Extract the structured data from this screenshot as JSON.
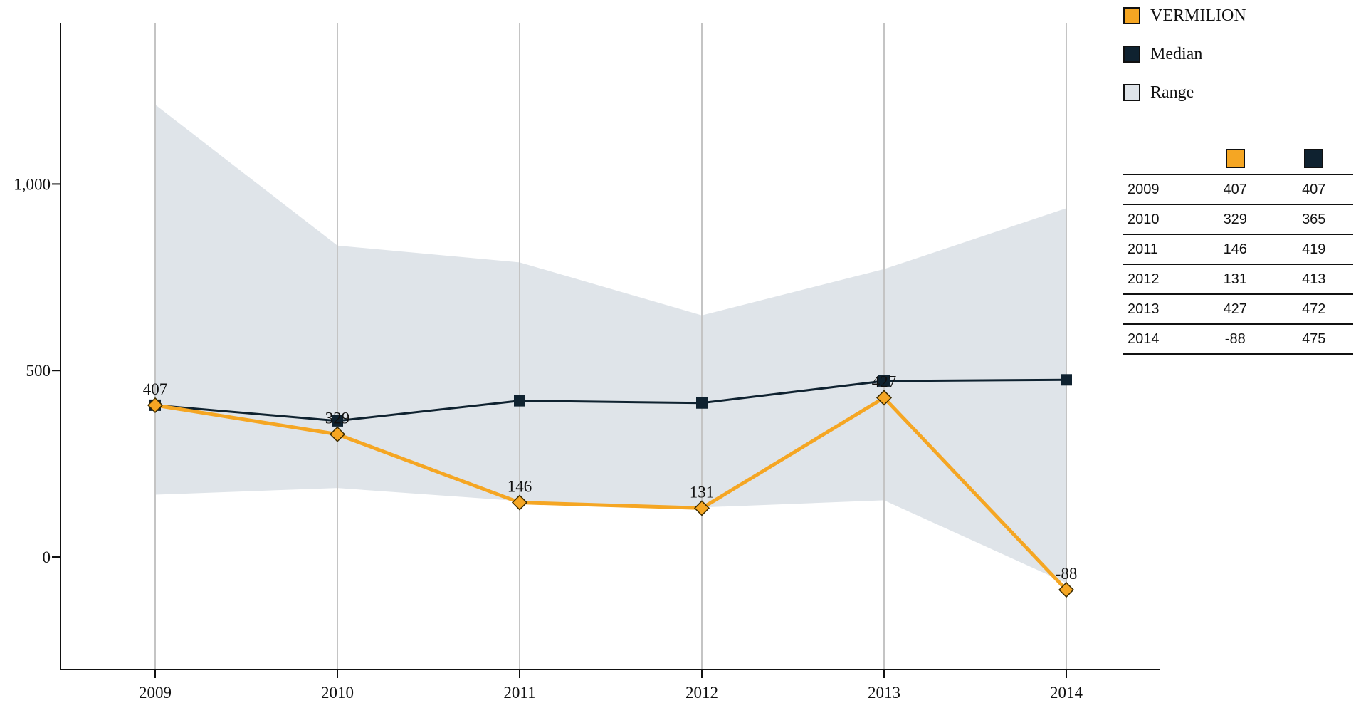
{
  "chart_data": {
    "type": "line",
    "categories": [
      "2009",
      "2010",
      "2011",
      "2012",
      "2013",
      "2014"
    ],
    "series": [
      {
        "name": "VERMILION",
        "values": [
          407,
          329,
          146,
          131,
          427,
          -88
        ],
        "color": "#f5a623",
        "marker": "diamond",
        "data_labels": [
          "407",
          "329",
          "146",
          "131",
          "427",
          "-88"
        ]
      },
      {
        "name": "Median",
        "values": [
          407,
          365,
          419,
          413,
          472,
          475
        ],
        "color": "#0f2230",
        "marker": "square"
      }
    ],
    "range": {
      "name": "Range",
      "upper": [
        1213,
        835,
        790,
        648,
        772,
        935
      ],
      "lower": [
        167,
        185,
        150,
        133,
        152,
        -70
      ],
      "color": "#dfe4e9"
    },
    "yticks": [
      "0",
      "500",
      "1,000"
    ],
    "ytick_values": [
      0,
      500,
      1000
    ],
    "ylim": [
      -300,
      1430
    ],
    "xlabel": "",
    "ylabel": "",
    "title": "",
    "grid": "vertical",
    "legend": "top-right"
  },
  "legend": {
    "items": [
      {
        "label": "VERMILION",
        "color": "#f5a623"
      },
      {
        "label": "Median",
        "color": "#0f2230"
      },
      {
        "label": "Range",
        "color": "#dfe4e9"
      }
    ]
  },
  "table": {
    "header_colors": [
      "#f5a623",
      "#0f2230"
    ],
    "rows": [
      {
        "year": "2009",
        "vermilion": "407",
        "median": "407"
      },
      {
        "year": "2010",
        "vermilion": "329",
        "median": "365"
      },
      {
        "year": "2011",
        "vermilion": "146",
        "median": "419"
      },
      {
        "year": "2012",
        "vermilion": "131",
        "median": "413"
      },
      {
        "year": "2013",
        "vermilion": "427",
        "median": "472"
      },
      {
        "year": "2014",
        "vermilion": "-88",
        "median": "475"
      }
    ]
  }
}
